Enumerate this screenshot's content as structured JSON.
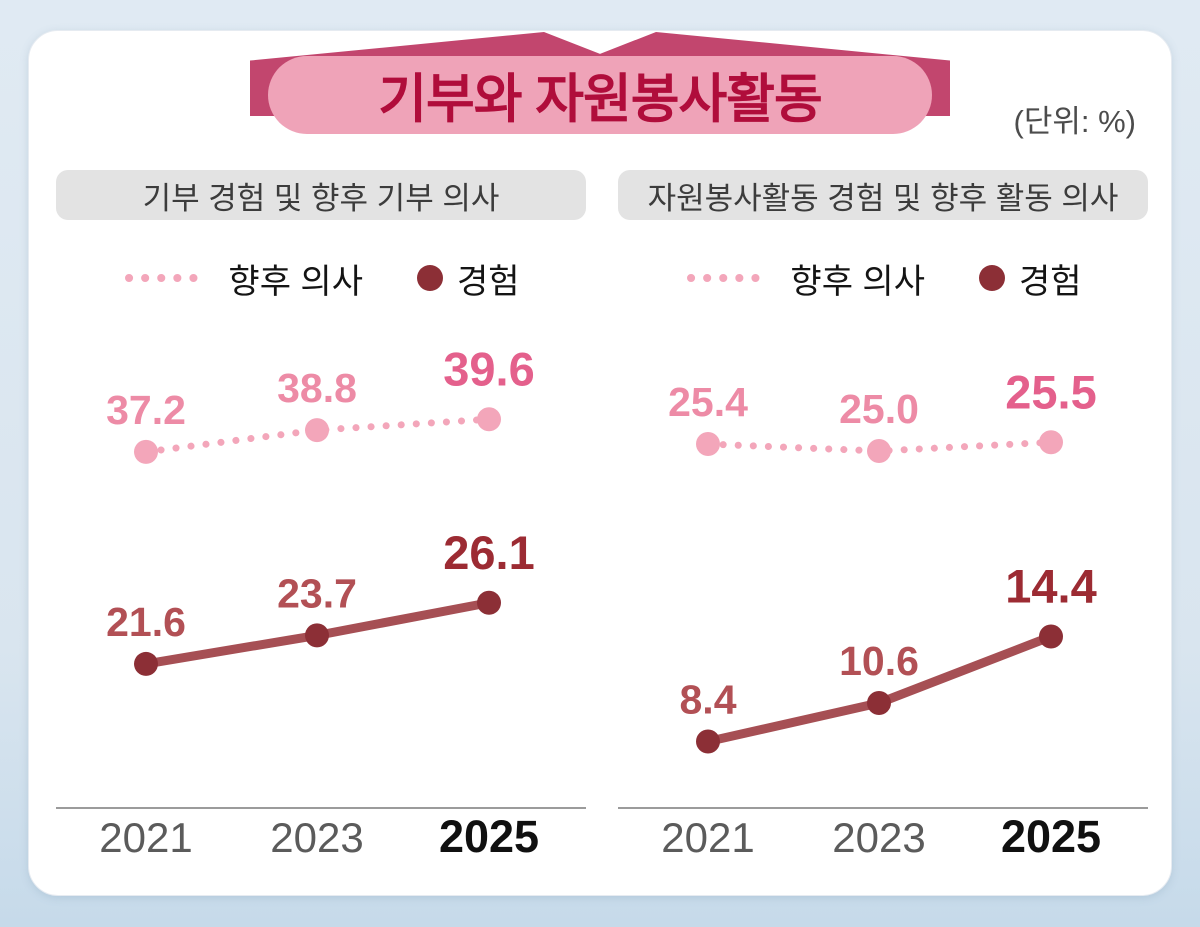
{
  "page": {
    "title": "기부와 자원봉사활동",
    "unit_label": "(단위:  %)"
  },
  "chart_data": [
    {
      "type": "line",
      "title": "기부 경험 및 향후 기부 의사",
      "categories": [
        "2021",
        "2023",
        "2025"
      ],
      "series": [
        {
          "name": "향후 의사",
          "style": "dotted",
          "values": [
            37.2,
            38.8,
            39.6
          ]
        },
        {
          "name": "경험",
          "style": "solid",
          "values": [
            21.6,
            23.7,
            26.1
          ]
        }
      ],
      "ylim": [
        11.0,
        41.9
      ],
      "unit": "%",
      "grid": false,
      "legend_position": "top"
    },
    {
      "type": "line",
      "title": "자원봉사활동 경험 및 향후 활동 의사",
      "categories": [
        "2021",
        "2023",
        "2025"
      ],
      "series": [
        {
          "name": "향후 의사",
          "style": "dotted",
          "values": [
            25.4,
            25.0,
            25.5
          ]
        },
        {
          "name": "경험",
          "style": "solid",
          "values": [
            8.4,
            10.6,
            14.4
          ]
        }
      ],
      "ylim": [
        4.6,
        28.6
      ],
      "unit": "%",
      "grid": false,
      "legend_position": "top"
    }
  ],
  "colors": {
    "background": "#d9e5ef",
    "banner_fill": "#efa3b8",
    "banner_ribbon": "#c2466e",
    "banner_text": "#b00d3b",
    "header_bg": "#e3e3e3",
    "intent_line": "#f3a6ba",
    "intent_marker": "#f3a6ba",
    "intent_label": "#ed8ba6",
    "intent_label_bold": "#e4608c",
    "experience_line": "#a64f54",
    "experience_marker": "#8c2f36",
    "experience_label": "#b25055",
    "experience_label_bold": "#9c2b33",
    "axis": "#9b9b9b",
    "tick_label": "#5b5b5b",
    "tick_label_bold": "#101010"
  }
}
